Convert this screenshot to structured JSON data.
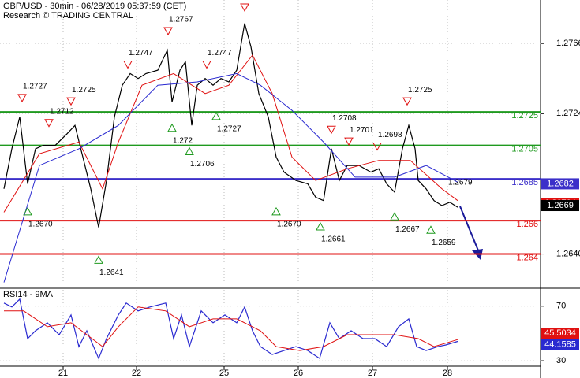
{
  "chart_data": [
    {
      "type": "line",
      "title": "GBP/USD - 30min - 06/28/2019 05:37:59 (CET)",
      "subtitle": "Research © TRADING CENTRAL",
      "xlim": [
        0,
        6.85
      ],
      "xticks": [
        {
          "value": 0.8,
          "label": "21"
        },
        {
          "value": 1.73,
          "label": "22"
        },
        {
          "value": 2.84,
          "label": "25"
        },
        {
          "value": 3.78,
          "label": "26"
        },
        {
          "value": 4.72,
          "label": "27"
        },
        {
          "value": 5.67,
          "label": "28"
        }
      ],
      "ylim": [
        1.262,
        1.2792
      ],
      "yticks": [
        1.2766,
        1.2724,
        {
          "value": 1.264,
          "label": "1.2640"
        }
      ],
      "grid": true,
      "series": [
        {
          "color": "#000000",
          "x": [
            0.05,
            0.15,
            0.25,
            0.35,
            0.45,
            0.55,
            0.7,
            0.85,
            0.95,
            1.05,
            1.15,
            1.25,
            1.35,
            1.45,
            1.55,
            1.65,
            1.75,
            1.85,
            2.0,
            2.12,
            2.18,
            2.28,
            2.35,
            2.43,
            2.5,
            2.6,
            2.7,
            2.8,
            2.9,
            3.0,
            3.1,
            3.18,
            3.28,
            3.4,
            3.5,
            3.6,
            3.75,
            3.9,
            4.0,
            4.1,
            4.2,
            4.3,
            4.4,
            4.55,
            4.7,
            4.8,
            4.9,
            5.0,
            5.1,
            5.18,
            5.26,
            5.3,
            5.4,
            5.5,
            5.6,
            5.7,
            5.8
          ],
          "values": [
            1.2679,
            1.2703,
            1.2722,
            1.2682,
            1.2703,
            1.2705,
            1.2705,
            1.2712,
            1.2717,
            1.2698,
            1.2679,
            1.2656,
            1.2684,
            1.2722,
            1.2741,
            1.2748,
            1.2745,
            1.2748,
            1.275,
            1.2762,
            1.2731,
            1.275,
            1.2755,
            1.2717,
            1.2741,
            1.2745,
            1.2741,
            1.2745,
            1.2743,
            1.275,
            1.2778,
            1.2764,
            1.2736,
            1.2722,
            1.2698,
            1.2689,
            1.2684,
            1.2682,
            1.2674,
            1.2672,
            1.2703,
            1.2684,
            1.2693,
            1.2693,
            1.2689,
            1.2691,
            1.2682,
            1.2677,
            1.2703,
            1.2717,
            1.2703,
            1.2684,
            1.2679,
            1.2672,
            1.2669,
            1.2671,
            1.2668
          ]
        },
        {
          "color": "#e01010",
          "x": [
            0.05,
            0.5,
            1.0,
            1.3,
            1.5,
            1.8,
            2.2,
            2.6,
            2.9,
            3.2,
            3.45,
            3.7,
            4.0,
            4.4,
            4.8,
            5.2,
            5.6,
            5.8
          ],
          "values": [
            1.2665,
            1.27,
            1.2707,
            1.2679,
            1.2707,
            1.2741,
            1.2748,
            1.2736,
            1.2741,
            1.2759,
            1.2736,
            1.2698,
            1.2684,
            1.2691,
            1.2696,
            1.2696,
            1.2679,
            1.2672
          ]
        },
        {
          "color": "#2a2ad0",
          "x": [
            0.05,
            0.5,
            1.0,
            1.5,
            2.0,
            2.5,
            3.0,
            3.3,
            3.7,
            4.1,
            4.5,
            5.0,
            5.4,
            5.8
          ],
          "values": [
            1.2623,
            1.2693,
            1.2703,
            1.2717,
            1.2741,
            1.2743,
            1.2748,
            1.2741,
            1.2726,
            1.2707,
            1.2686,
            1.2686,
            1.2693,
            1.2683
          ]
        }
      ],
      "levels": [
        {
          "value": 1.2725,
          "color": "#1f9a1f"
        },
        {
          "value": 1.2705,
          "color": "#1f9a1f"
        },
        {
          "value": 1.2685,
          "color": "#3b2fc9"
        },
        {
          "value": 1.266,
          "color": "#e01010"
        },
        {
          "value": 1.264,
          "color": "#e01010"
        }
      ],
      "annotations": [
        {
          "x": 0.28,
          "value": 1.2727,
          "direction": "down"
        },
        {
          "x": 0.62,
          "value": 1.2712,
          "direction": "down"
        },
        {
          "x": 0.9,
          "value": 1.2725,
          "direction": "down"
        },
        {
          "x": 1.62,
          "value": 1.2747,
          "direction": "down"
        },
        {
          "x": 2.13,
          "value": 1.2767,
          "direction": "down"
        },
        {
          "x": 2.62,
          "value": 1.2747,
          "direction": "down"
        },
        {
          "x": 4.2,
          "value": 1.2708,
          "direction": "down"
        },
        {
          "x": 4.42,
          "value": 1.2701,
          "direction": "down"
        },
        {
          "x": 4.78,
          "value": 1.2698,
          "direction": "down"
        },
        {
          "x": 5.16,
          "value": 1.2725,
          "direction": "down"
        },
        {
          "x": 0.35,
          "value": 1.267,
          "label": "1.2670",
          "direction": "up"
        },
        {
          "x": 1.25,
          "value": 1.2641,
          "direction": "up"
        },
        {
          "x": 2.18,
          "value": 1.272,
          "label": "1.272",
          "direction": "up"
        },
        {
          "x": 2.4,
          "value": 1.2706,
          "direction": "up"
        },
        {
          "x": 2.74,
          "value": 1.2727,
          "direction": "up"
        },
        {
          "x": 3.5,
          "value": 1.267,
          "label": "1.2670",
          "direction": "up"
        },
        {
          "x": 4.06,
          "value": 1.2661,
          "direction": "up"
        },
        {
          "x": 5.0,
          "value": 1.2667,
          "direction": "up"
        },
        {
          "x": 5.46,
          "value": 1.2659,
          "direction": "up"
        },
        {
          "x": 5.68,
          "value": 1.2679,
          "direction": "label"
        }
      ],
      "value_boxes": [
        {
          "value": 1.2682,
          "color": "#3b2fc9"
        },
        {
          "value": 1.26704,
          "color": "#e01010"
        },
        {
          "value": 1.2669,
          "color": "#000000"
        }
      ]
    },
    {
      "type": "line",
      "title": "RSI14 - 9MA",
      "xlim": [
        0,
        6.85
      ],
      "ylim": [
        26,
        82
      ],
      "yticks": [
        70,
        30
      ],
      "series": [
        {
          "color": "#2a2ad0",
          "x": [
            0.05,
            0.15,
            0.25,
            0.35,
            0.45,
            0.6,
            0.75,
            0.9,
            1.0,
            1.1,
            1.25,
            1.35,
            1.5,
            1.6,
            1.75,
            1.9,
            2.1,
            2.2,
            2.3,
            2.4,
            2.55,
            2.7,
            2.85,
            3.0,
            3.1,
            3.2,
            3.3,
            3.45,
            3.6,
            3.75,
            3.9,
            4.05,
            4.18,
            4.3,
            4.45,
            4.6,
            4.75,
            4.9,
            5.05,
            5.18,
            5.28,
            5.4,
            5.55,
            5.65,
            5.8
          ],
          "values": [
            72.3,
            69.4,
            75.2,
            46.2,
            52.0,
            57.8,
            49.1,
            63.6,
            40.4,
            52.0,
            31.7,
            46.2,
            63.6,
            72.3,
            66.5,
            69.4,
            72.3,
            46.2,
            63.6,
            40.4,
            66.5,
            57.8,
            63.6,
            57.8,
            69.4,
            52.0,
            40.4,
            34.6,
            37.5,
            40.4,
            37.5,
            31.7,
            57.8,
            46.2,
            52.0,
            46.2,
            46.2,
            40.4,
            54.9,
            60.7,
            40.4,
            37.5,
            40.4,
            41.6,
            44.1585
          ]
        },
        {
          "color": "#e01010",
          "x": [
            0.05,
            0.3,
            0.6,
            0.9,
            1.1,
            1.3,
            1.5,
            1.75,
            2.1,
            2.4,
            2.7,
            3.0,
            3.3,
            3.5,
            3.8,
            4.1,
            4.4,
            4.7,
            5.0,
            5.3,
            5.5,
            5.8
          ],
          "values": [
            66.5,
            66.5,
            54.9,
            57.8,
            49.1,
            40.4,
            54.9,
            69.4,
            66.5,
            54.9,
            60.7,
            60.7,
            52.0,
            40.4,
            37.5,
            40.4,
            49.1,
            49.1,
            49.1,
            46.2,
            40.4,
            45.5034
          ]
        }
      ],
      "value_boxes": [
        {
          "value": 45.5034,
          "color": "#e01010"
        },
        {
          "value": 44.1585,
          "color": "#2a2ad0"
        }
      ]
    }
  ]
}
